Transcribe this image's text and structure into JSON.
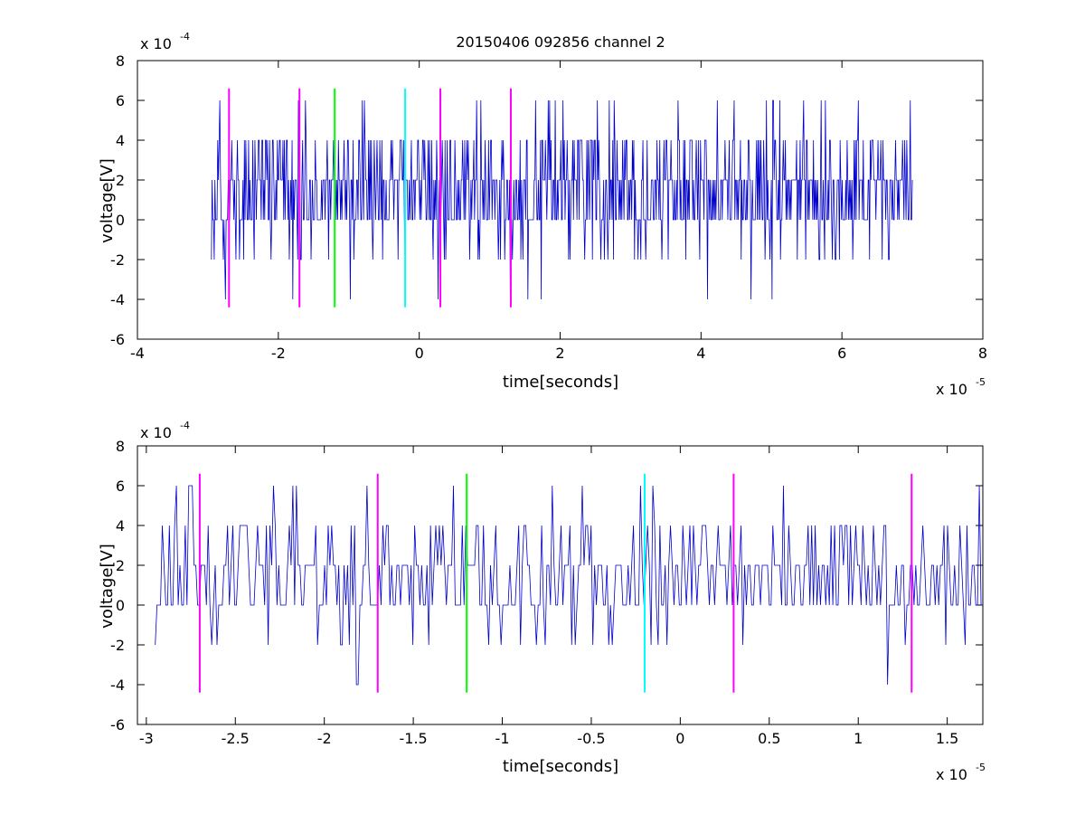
{
  "chart_data": [
    {
      "type": "line",
      "title": "20150406 092856 channel 2",
      "xlabel": "time[seconds]",
      "ylabel": "voltage[V]",
      "x_multiplier": {
        "base": "x 10",
        "exp": "-5"
      },
      "y_multiplier": {
        "base": "x 10",
        "exp": "-4"
      },
      "xlim": [
        -4e-05,
        8e-05
      ],
      "ylim": [
        -0.0006,
        0.0008
      ],
      "xticks": [
        -4e-05,
        -2e-05,
        0,
        2e-05,
        4e-05,
        6e-05,
        8e-05
      ],
      "xtick_labels": [
        "-4",
        "-2",
        "0",
        "2",
        "4",
        "6",
        "8"
      ],
      "yticks": [
        -0.0006,
        -0.0004,
        -0.0002,
        0,
        0.0002,
        0.0004,
        0.0006,
        0.0008
      ],
      "ytick_labels": [
        "-6",
        "-4",
        "-2",
        "0",
        "2",
        "4",
        "6",
        "8"
      ],
      "grid": false,
      "signal": {
        "color": "#0000cc",
        "x_range": [
          -2.95e-05,
          7e-05
        ],
        "levels": [
          -0.0004,
          -0.0002,
          0,
          0.0002,
          0.0004,
          0.0006
        ],
        "samples": 1000,
        "description_none": ""
      },
      "markers": [
        {
          "x": -2.7e-05,
          "color": "#ff00ff",
          "y_range": [
            -0.00044,
            0.00066
          ]
        },
        {
          "x": -1.7e-05,
          "color": "#ff00ff",
          "y_range": [
            -0.00044,
            0.00066
          ]
        },
        {
          "x": -1.2e-05,
          "color": "#00ff00",
          "y_range": [
            -0.00044,
            0.00066
          ]
        },
        {
          "x": -2e-06,
          "color": "#00ffff",
          "y_range": [
            -0.00044,
            0.00066
          ]
        },
        {
          "x": 3e-06,
          "color": "#ff00ff",
          "y_range": [
            -0.00044,
            0.00066
          ]
        },
        {
          "x": 1.3e-05,
          "color": "#ff00ff",
          "y_range": [
            -0.00044,
            0.00066
          ]
        }
      ]
    },
    {
      "type": "line",
      "title": "",
      "xlabel": "time[seconds]",
      "ylabel": "voltage[V]",
      "x_multiplier": {
        "base": "x 10",
        "exp": "-5"
      },
      "y_multiplier": {
        "base": "x 10",
        "exp": "-4"
      },
      "xlim": [
        -3.05e-05,
        1.7e-05
      ],
      "ylim": [
        -0.0006,
        0.0008
      ],
      "xticks": [
        -3e-05,
        -2.5e-05,
        -2e-05,
        -1.5e-05,
        -1e-05,
        -5e-06,
        0,
        5e-06,
        1e-05,
        1.5e-05
      ],
      "xtick_labels": [
        "-3",
        "-2.5",
        "-2",
        "-1.5",
        "-1",
        "-0.5",
        "0",
        "0.5",
        "1",
        "1.5"
      ],
      "yticks": [
        -0.0006,
        -0.0004,
        -0.0002,
        0,
        0.0002,
        0.0004,
        0.0006,
        0.0008
      ],
      "ytick_labels": [
        "-6",
        "-4",
        "-2",
        "0",
        "2",
        "4",
        "6",
        "8"
      ],
      "grid": false,
      "signal": {
        "color": "#0000cc",
        "x_range": [
          -2.95e-05,
          1.7e-05
        ],
        "levels": [
          -0.0004,
          -0.0002,
          0,
          0.0002,
          0.0004,
          0.0006
        ],
        "samples": 470
      },
      "markers": [
        {
          "x": -2.7e-05,
          "color": "#ff00ff",
          "y_range": [
            -0.00044,
            0.00066
          ]
        },
        {
          "x": -1.7e-05,
          "color": "#ff00ff",
          "y_range": [
            -0.00044,
            0.00066
          ]
        },
        {
          "x": -1.2e-05,
          "color": "#00ff00",
          "y_range": [
            -0.00044,
            0.00066
          ]
        },
        {
          "x": -2e-06,
          "color": "#00ffff",
          "y_range": [
            -0.00044,
            0.00066
          ]
        },
        {
          "x": 3e-06,
          "color": "#ff00ff",
          "y_range": [
            -0.00044,
            0.00066
          ]
        },
        {
          "x": 1.3e-05,
          "color": "#ff00ff",
          "y_range": [
            -0.00044,
            0.00066
          ]
        }
      ]
    }
  ]
}
